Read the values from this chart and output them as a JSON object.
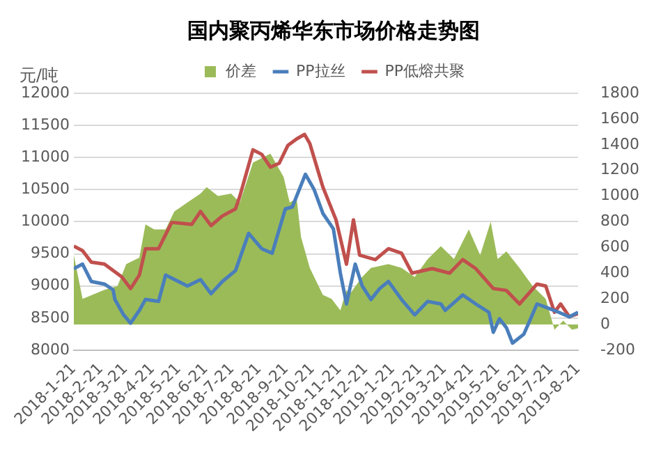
{
  "chart_data": {
    "type": "line",
    "title": "国内聚丙烯华东市场价格走势图",
    "ylabel": "元/吨",
    "legend": "top",
    "grid": "y",
    "marker": "none",
    "line_style": "solid",
    "xlim": [
      "2018-01-21",
      "2019-08-21"
    ],
    "xticks": [
      {
        "value": "2018-01-21",
        "label": "2018-1-21"
      },
      {
        "value": "2018-02-21",
        "label": "2018-2-21"
      },
      {
        "value": "2018-03-21",
        "label": "2018-3-21"
      },
      {
        "value": "2018-04-21",
        "label": "2018-4-21"
      },
      {
        "value": "2018-05-21",
        "label": "2018-5-21"
      },
      {
        "value": "2018-06-21",
        "label": "2018-6-21"
      },
      {
        "value": "2018-07-21",
        "label": "2018-7-21"
      },
      {
        "value": "2018-08-21",
        "label": "2018-8-21"
      },
      {
        "value": "2018-09-21",
        "label": "2018-9-21"
      },
      {
        "value": "2018-10-21",
        "label": "2018-10-21"
      },
      {
        "value": "2018-11-21",
        "label": "2018-11-21"
      },
      {
        "value": "2018-12-21",
        "label": "2018-12-21"
      },
      {
        "value": "2019-01-21",
        "label": "2019-1-21"
      },
      {
        "value": "2019-02-21",
        "label": "2019-2-21"
      },
      {
        "value": "2019-03-21",
        "label": "2019-3-21"
      },
      {
        "value": "2019-04-21",
        "label": "2019-4-21"
      },
      {
        "value": "2019-05-21",
        "label": "2019-5-21"
      },
      {
        "value": "2019-06-21",
        "label": "2019-6-21"
      },
      {
        "value": "2019-07-21",
        "label": "2019-7-21"
      },
      {
        "value": "2019-08-21",
        "label": "2019-8-21"
      }
    ],
    "ylim": [
      8000,
      12000
    ],
    "yticks": [
      8000,
      8500,
      9000,
      9500,
      10000,
      10500,
      11000,
      11500,
      12000
    ],
    "y2lim": [
      -200,
      1800
    ],
    "y2ticks": [
      -200,
      0,
      200,
      400,
      600,
      800,
      1000,
      1200,
      1400,
      1600,
      1800
    ],
    "series": [
      {
        "name": "价差",
        "type": "area",
        "axis": "y2",
        "color": "#9bbb59",
        "x": [
          "2018-01-21",
          "2018-01-31",
          "2018-02-25",
          "2018-03-12",
          "2018-03-22",
          "2018-04-06",
          "2018-04-13",
          "2018-04-23",
          "2018-05-06",
          "2018-05-16",
          "2018-05-31",
          "2018-06-15",
          "2018-06-22",
          "2018-07-05",
          "2018-07-20",
          "2018-07-30",
          "2018-08-14",
          "2018-09-03",
          "2018-09-18",
          "2018-09-25",
          "2018-10-03",
          "2018-10-08",
          "2018-10-18",
          "2018-11-02",
          "2018-11-12",
          "2018-11-22",
          "2018-11-29",
          "2018-12-02",
          "2018-12-17",
          "2018-12-27",
          "2019-01-16",
          "2019-01-31",
          "2019-02-15",
          "2019-03-02",
          "2019-03-17",
          "2019-04-01",
          "2019-04-18",
          "2019-05-01",
          "2019-05-13",
          "2019-05-21",
          "2019-05-31",
          "2019-06-15",
          "2019-06-30",
          "2019-07-15",
          "2019-07-25",
          "2019-08-04",
          "2019-08-14",
          "2019-08-21"
        ],
        "values": [
          540,
          200,
          270,
          300,
          470,
          520,
          780,
          740,
          740,
          880,
          950,
          1020,
          1070,
          1000,
          1020,
          950,
          1260,
          1330,
          1150,
          950,
          980,
          680,
          440,
          230,
          200,
          110,
          270,
          230,
          370,
          440,
          470,
          440,
          370,
          510,
          610,
          510,
          740,
          540,
          800,
          510,
          570,
          440,
          300,
          200,
          -40,
          30,
          -40,
          -30
        ]
      },
      {
        "name": "PP拉丝",
        "type": "line",
        "color": "#4a7ebb",
        "x": [
          "2018-01-21",
          "2018-01-31",
          "2018-02-10",
          "2018-02-25",
          "2018-03-07",
          "2018-03-09",
          "2018-03-19",
          "2018-03-27",
          "2018-04-06",
          "2018-04-13",
          "2018-04-28",
          "2018-05-06",
          "2018-05-31",
          "2018-06-15",
          "2018-06-27",
          "2018-07-10",
          "2018-07-25",
          "2018-08-09",
          "2018-08-24",
          "2018-09-05",
          "2018-09-20",
          "2018-09-28",
          "2018-10-13",
          "2018-10-23",
          "2018-11-02",
          "2018-11-14",
          "2018-11-22",
          "2018-11-29",
          "2018-12-09",
          "2018-12-17",
          "2018-12-27",
          "2019-01-06",
          "2019-01-16",
          "2019-01-31",
          "2019-02-15",
          "2019-03-02",
          "2019-03-17",
          "2019-03-22",
          "2019-04-11",
          "2019-04-26",
          "2019-05-11",
          "2019-05-16",
          "2019-05-23",
          "2019-05-31",
          "2019-06-07",
          "2019-06-20",
          "2019-07-05",
          "2019-07-17",
          "2019-07-30",
          "2019-08-11",
          "2019-08-21"
        ],
        "values": [
          9270,
          9340,
          9070,
          9030,
          8940,
          8790,
          8550,
          8420,
          8620,
          8790,
          8760,
          9170,
          9000,
          9100,
          8880,
          9070,
          9240,
          9820,
          9580,
          9510,
          10200,
          10230,
          10740,
          10500,
          10130,
          9890,
          9200,
          8720,
          9340,
          9000,
          8790,
          8960,
          9070,
          8790,
          8550,
          8760,
          8720,
          8620,
          8860,
          8720,
          8590,
          8280,
          8490,
          8350,
          8110,
          8250,
          8720,
          8660,
          8590,
          8520,
          8590
        ]
      },
      {
        "name": "PP低熔共聚",
        "type": "line",
        "color": "#c0504d",
        "x": [
          "2018-01-21",
          "2018-01-31",
          "2018-02-10",
          "2018-02-25",
          "2018-03-07",
          "2018-03-17",
          "2018-03-27",
          "2018-04-06",
          "2018-04-13",
          "2018-04-28",
          "2018-05-13",
          "2018-06-05",
          "2018-06-15",
          "2018-06-27",
          "2018-07-10",
          "2018-07-25",
          "2018-07-30",
          "2018-08-14",
          "2018-08-24",
          "2018-09-03",
          "2018-09-13",
          "2018-09-23",
          "2018-10-03",
          "2018-10-12",
          "2018-10-18",
          "2018-11-02",
          "2018-11-17",
          "2018-11-29",
          "2018-12-07",
          "2018-12-14",
          "2019-01-01",
          "2019-01-16",
          "2019-01-31",
          "2019-02-12",
          "2019-03-07",
          "2019-03-27",
          "2019-04-11",
          "2019-04-26",
          "2019-05-16",
          "2019-05-31",
          "2019-06-15",
          "2019-07-05",
          "2019-07-15",
          "2019-07-25",
          "2019-08-01",
          "2019-08-11",
          "2019-08-21"
        ],
        "values": [
          9620,
          9550,
          9370,
          9340,
          9240,
          9140,
          8960,
          9170,
          9580,
          9580,
          9990,
          9960,
          10160,
          9940,
          10090,
          10200,
          10400,
          11120,
          11050,
          10850,
          10910,
          11190,
          11290,
          11360,
          11220,
          10540,
          10030,
          9340,
          10030,
          9480,
          9410,
          9580,
          9510,
          9200,
          9270,
          9200,
          9410,
          9270,
          8960,
          8930,
          8720,
          9030,
          9000,
          8590,
          8720,
          8520,
          8570
        ]
      }
    ]
  }
}
